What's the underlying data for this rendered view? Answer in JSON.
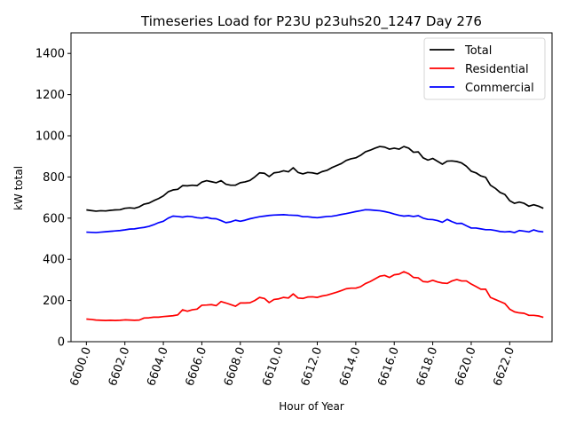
{
  "chart_data": {
    "type": "line",
    "title": "Timeseries Load for P23U p23uhs20_1247  Day 276",
    "xlabel": "Hour of Year",
    "ylabel": "kW total",
    "xlim": [
      6599.2,
      6624.2
    ],
    "ylim": [
      0,
      1500
    ],
    "xticks": [
      6600,
      6602,
      6604,
      6606,
      6608,
      6610,
      6612,
      6614,
      6616,
      6618,
      6620,
      6622
    ],
    "xtick_labels": [
      "6600.0",
      "6602.0",
      "6604.0",
      "6606.0",
      "6608.0",
      "6610.0",
      "6612.0",
      "6614.0",
      "6616.0",
      "6618.0",
      "6620.0",
      "6622.0"
    ],
    "yticks": [
      0,
      200,
      400,
      600,
      800,
      1000,
      1200,
      1400
    ],
    "ytick_labels": [
      "0",
      "200",
      "400",
      "600",
      "800",
      "1000",
      "1200",
      "1400"
    ],
    "legend_position": "top-right",
    "x": [
      6600.0,
      6600.25,
      6600.5,
      6600.75,
      6601.0,
      6601.25,
      6601.5,
      6601.75,
      6602.0,
      6602.25,
      6602.5,
      6602.75,
      6603.0,
      6603.25,
      6603.5,
      6603.75,
      6604.0,
      6604.25,
      6604.5,
      6604.75,
      6605.0,
      6605.25,
      6605.5,
      6605.75,
      6606.0,
      6606.25,
      6606.5,
      6606.75,
      6607.0,
      6607.25,
      6607.5,
      6607.75,
      6608.0,
      6608.25,
      6608.5,
      6608.75,
      6609.0,
      6609.25,
      6609.5,
      6609.75,
      6610.0,
      6610.25,
      6610.5,
      6610.75,
      6611.0,
      6611.25,
      6611.5,
      6611.75,
      6612.0,
      6612.25,
      6612.5,
      6612.75,
      6613.0,
      6613.25,
      6613.5,
      6613.75,
      6614.0,
      6614.25,
      6614.5,
      6614.75,
      6615.0,
      6615.25,
      6615.5,
      6615.75,
      6616.0,
      6616.25,
      6616.5,
      6616.75,
      6617.0,
      6617.25,
      6617.5,
      6617.75,
      6618.0,
      6618.25,
      6618.5,
      6618.75,
      6619.0,
      6619.25,
      6619.5,
      6619.75,
      6620.0,
      6620.25,
      6620.5,
      6620.75,
      6621.0,
      6621.25,
      6621.5,
      6621.75,
      6622.0,
      6622.25,
      6622.5,
      6622.75,
      6623.0,
      6623.25,
      6623.5,
      6623.75
    ],
    "series": [
      {
        "name": "Total",
        "color": "#000000",
        "values": [
          640,
          637,
          634,
          636,
          635,
          638,
          640,
          641,
          648,
          650,
          648,
          655,
          668,
          673,
          685,
          695,
          708,
          728,
          737,
          740,
          758,
          757,
          760,
          758,
          775,
          782,
          777,
          772,
          782,
          765,
          760,
          760,
          772,
          776,
          783,
          800,
          820,
          818,
          802,
          820,
          823,
          830,
          825,
          845,
          822,
          815,
          822,
          820,
          815,
          826,
          832,
          845,
          855,
          865,
          880,
          888,
          893,
          905,
          922,
          930,
          940,
          948,
          945,
          935,
          940,
          935,
          948,
          940,
          920,
          922,
          893,
          882,
          890,
          876,
          862,
          877,
          878,
          875,
          868,
          852,
          828,
          820,
          805,
          798,
          760,
          745,
          725,
          715,
          685,
          672,
          678,
          672,
          658,
          665,
          658,
          648
        ]
      },
      {
        "name": "Residential",
        "color": "#ff0000",
        "values": [
          110,
          108,
          105,
          104,
          103,
          104,
          103,
          104,
          106,
          105,
          104,
          105,
          115,
          116,
          119,
          119,
          122,
          124,
          126,
          130,
          155,
          148,
          155,
          158,
          177,
          178,
          180,
          175,
          195,
          188,
          180,
          172,
          188,
          188,
          189,
          200,
          215,
          210,
          190,
          205,
          208,
          215,
          212,
          232,
          212,
          210,
          217,
          218,
          215,
          222,
          226,
          233,
          240,
          248,
          257,
          260,
          260,
          267,
          282,
          292,
          305,
          318,
          322,
          312,
          325,
          328,
          340,
          330,
          312,
          310,
          292,
          290,
          298,
          290,
          285,
          283,
          295,
          302,
          295,
          295,
          280,
          268,
          255,
          255,
          215,
          205,
          195,
          185,
          158,
          145,
          140,
          138,
          128,
          128,
          125,
          118
        ]
      },
      {
        "name": "Commercial",
        "color": "#0000ff",
        "values": [
          532,
          531,
          530,
          532,
          534,
          536,
          538,
          540,
          543,
          547,
          548,
          552,
          555,
          560,
          568,
          578,
          585,
          600,
          610,
          608,
          605,
          609,
          607,
          602,
          600,
          604,
          598,
          597,
          588,
          578,
          582,
          590,
          585,
          590,
          597,
          602,
          607,
          610,
          613,
          615,
          616,
          617,
          615,
          614,
          613,
          607,
          607,
          604,
          602,
          605,
          608,
          609,
          613,
          618,
          622,
          627,
          632,
          636,
          641,
          640,
          638,
          636,
          632,
          627,
          620,
          614,
          610,
          612,
          608,
          612,
          600,
          594,
          593,
          588,
          580,
          594,
          583,
          574,
          575,
          563,
          552,
          552,
          548,
          544,
          544,
          540,
          535,
          533,
          535,
          530,
          540,
          537,
          533,
          543,
          536,
          533
        ]
      }
    ]
  }
}
